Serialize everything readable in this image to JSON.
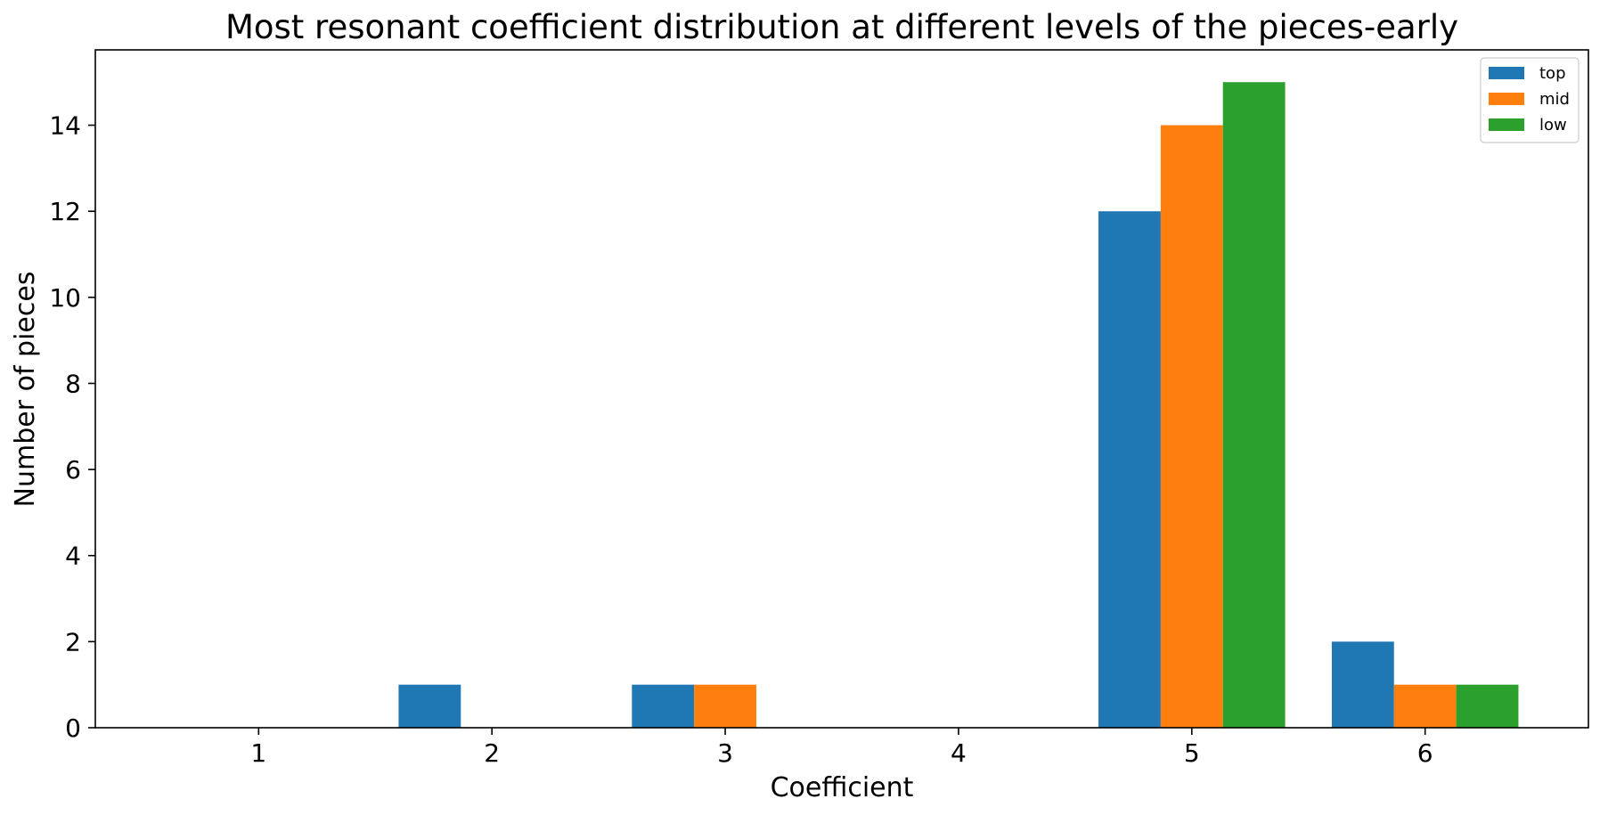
{
  "chart_data": {
    "type": "bar",
    "title": "Most resonant coefficient distribution at different levels of the pieces-early",
    "xlabel": "Coefficient",
    "ylabel": "Number of pieces",
    "categories": [
      "1",
      "2",
      "3",
      "4",
      "5",
      "6"
    ],
    "series": [
      {
        "name": "top",
        "color": "#1f77b4",
        "values": [
          0,
          1,
          1,
          0,
          12,
          2
        ]
      },
      {
        "name": "mid",
        "color": "#ff7f0e",
        "values": [
          0,
          0,
          1,
          0,
          14,
          1
        ]
      },
      {
        "name": "low",
        "color": "#2ca02c",
        "values": [
          0,
          0,
          0,
          0,
          15,
          1
        ]
      }
    ],
    "ylim": [
      0,
      15.75
    ],
    "yticks": [
      0,
      2,
      4,
      6,
      8,
      10,
      12,
      14
    ],
    "grid": false,
    "legend": "top-right"
  }
}
